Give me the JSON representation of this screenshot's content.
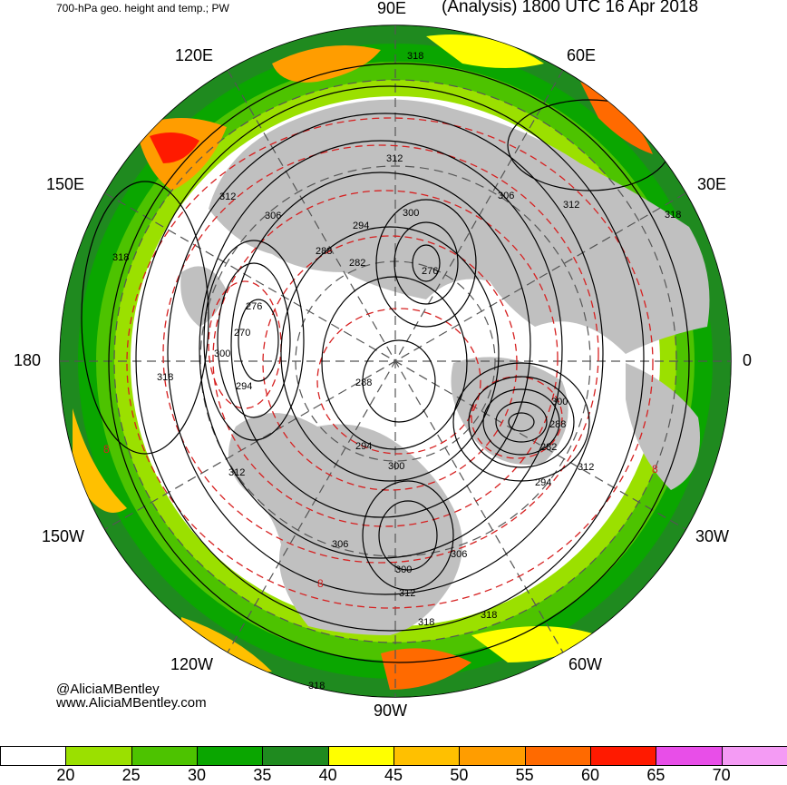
{
  "header": {
    "title_left": "700-hPa geo. height and temp.; PW",
    "title_right": "(Analysis) 1800 UTC 16 Apr 2018"
  },
  "map": {
    "projection": "north-polar-stereographic",
    "longitude_labels": {
      "lon_90e": "90E",
      "lon_60e": "60E",
      "lon_120e": "120E",
      "lon_150e": "150E",
      "lon_30e": "30E",
      "lon_180": "180",
      "lon_0": "0",
      "lon_150w": "150W",
      "lon_30w": "30W",
      "lon_120w": "120W",
      "lon_60w": "60W",
      "lon_90w": "90W"
    },
    "height_contour_labels": {
      "h318_top": "318",
      "h312_top": "312",
      "h306_ne": "306",
      "h312_ne": "312",
      "h318_e": "318",
      "h312_nw": "312",
      "h306_nw": "306",
      "h294_n": "294",
      "h300_n": "300",
      "h288_n": "288",
      "h282_n": "282",
      "h276_n": "276",
      "h318_w": "318",
      "h276_w": "276",
      "h270_w": "270",
      "h300_w": "300",
      "h318_w2": "318",
      "h294_w": "294",
      "h288_c": "288",
      "h294_c": "294",
      "h300_c": "300",
      "h300_e": "300",
      "h288_e": "288",
      "h282_e": "282",
      "h312_e2": "312",
      "h294_e": "294",
      "h312_sw": "312",
      "h306_s": "306",
      "h306_s2": "306",
      "h300_s": "300",
      "h312_s": "312",
      "h318_s": "318",
      "h318_s2": "318",
      "h318_bottom": "318"
    },
    "temperature_contour_labels": {
      "t8_w": "8",
      "t8_s": "8",
      "t8_e": "8"
    },
    "colors": {
      "land": "#c0c0c0",
      "ocean_dry": "#ffffff",
      "height_contour": "#000000",
      "temperature_contour": "#d62020",
      "grid": "#555555"
    }
  },
  "credits": {
    "handle": "@AliciaMBentley",
    "website": "www.AliciaMBentley.com"
  },
  "colorbar": {
    "title": "",
    "colors": [
      "#ffffff",
      "#9be000",
      "#4dc300",
      "#0aa600",
      "#1f8a1f",
      "#ffff00",
      "#ffc000",
      "#ff9d00",
      "#ff6a00",
      "#ff1a00",
      "#e84ee8",
      "#f49bf4"
    ],
    "labels": [
      "20",
      "25",
      "30",
      "35",
      "40",
      "45",
      "50",
      "55",
      "60",
      "65",
      "70"
    ]
  }
}
